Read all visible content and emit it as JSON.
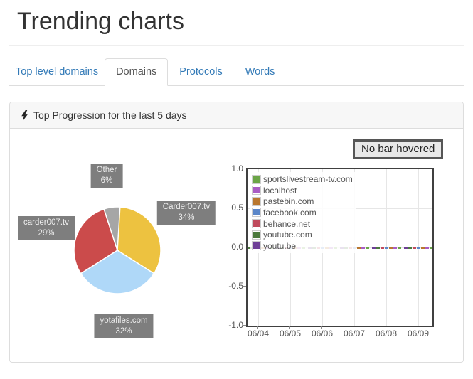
{
  "page": {
    "title": "Trending charts"
  },
  "tabs": [
    {
      "label": "Top level domains",
      "active": false
    },
    {
      "label": "Domains",
      "active": true
    },
    {
      "label": "Protocols",
      "active": false
    },
    {
      "label": "Words",
      "active": false
    }
  ],
  "panel": {
    "title": "Top Progression for the last 5 days",
    "icon": "lightning-bolt",
    "hover_status": "No bar hovered"
  },
  "colors": {
    "link_blue": "#337ab7",
    "active_tab_text": "#555555",
    "panel_border": "#dddddd",
    "panel_header_bg": "#f7f7f7",
    "plot_border": "#404040",
    "grid_line": "#e6e6e6",
    "axis_text": "#545454",
    "pie_label_bg": "#7e7e7e",
    "pie_label_text": "#eeeeee",
    "hover_box_border": "#565656",
    "hover_box_bg": "#e8e8e8"
  },
  "chart_data": [
    {
      "type": "pie",
      "title": "Top domains share",
      "start_angle": "top",
      "direction": "clockwise",
      "slices": [
        {
          "label": "Carder007.tv",
          "percent": 34,
          "percent_label": "34%",
          "color": "#edc240"
        },
        {
          "label": "yotafiles.com",
          "percent": 32,
          "percent_label": "32%",
          "color": "#afd8f8"
        },
        {
          "label": "carder007.tv",
          "percent": 29,
          "percent_label": "29%",
          "color": "#cb4b4b"
        },
        {
          "label": "Other",
          "percent": 6,
          "percent_label": "6%",
          "color": "#a6a6a6"
        }
      ]
    },
    {
      "type": "bar",
      "title": "Daily progression",
      "x": [
        "06/04",
        "06/05",
        "06/06",
        "06/07",
        "06/08",
        "06/09"
      ],
      "ylim": [
        -1.0,
        1.0
      ],
      "ytick_labels": [
        "1.0",
        "0.5",
        "0.0",
        "-0.5",
        "-1.0"
      ],
      "grid": true,
      "legend_position": "top-left",
      "series": [
        {
          "name": "sportslivestream-tv.com",
          "color": "#6ba547",
          "values": [
            0,
            0,
            0,
            0,
            0,
            0
          ]
        },
        {
          "name": "localhost",
          "color": "#a95cc4",
          "values": [
            0,
            0,
            0,
            0,
            0,
            0
          ]
        },
        {
          "name": "pastebin.com",
          "color": "#b9772e",
          "values": [
            0,
            0,
            0,
            0,
            0,
            0
          ]
        },
        {
          "name": "facebook.com",
          "color": "#5b87c9",
          "values": [
            0,
            0,
            0,
            0,
            0,
            0
          ]
        },
        {
          "name": "behance.net",
          "color": "#c04a5c",
          "values": [
            0,
            0,
            0,
            0,
            0,
            0
          ]
        },
        {
          "name": "youtube.com",
          "color": "#4c7a3d",
          "values": [
            0,
            0,
            0,
            0,
            0,
            0
          ]
        },
        {
          "name": "youtu.be",
          "color": "#6e3f96",
          "values": [
            0,
            0,
            0,
            0,
            0,
            0
          ]
        }
      ],
      "note": "all bar values are approximately 0; they render as tiny colored dashes on the zero line"
    }
  ]
}
